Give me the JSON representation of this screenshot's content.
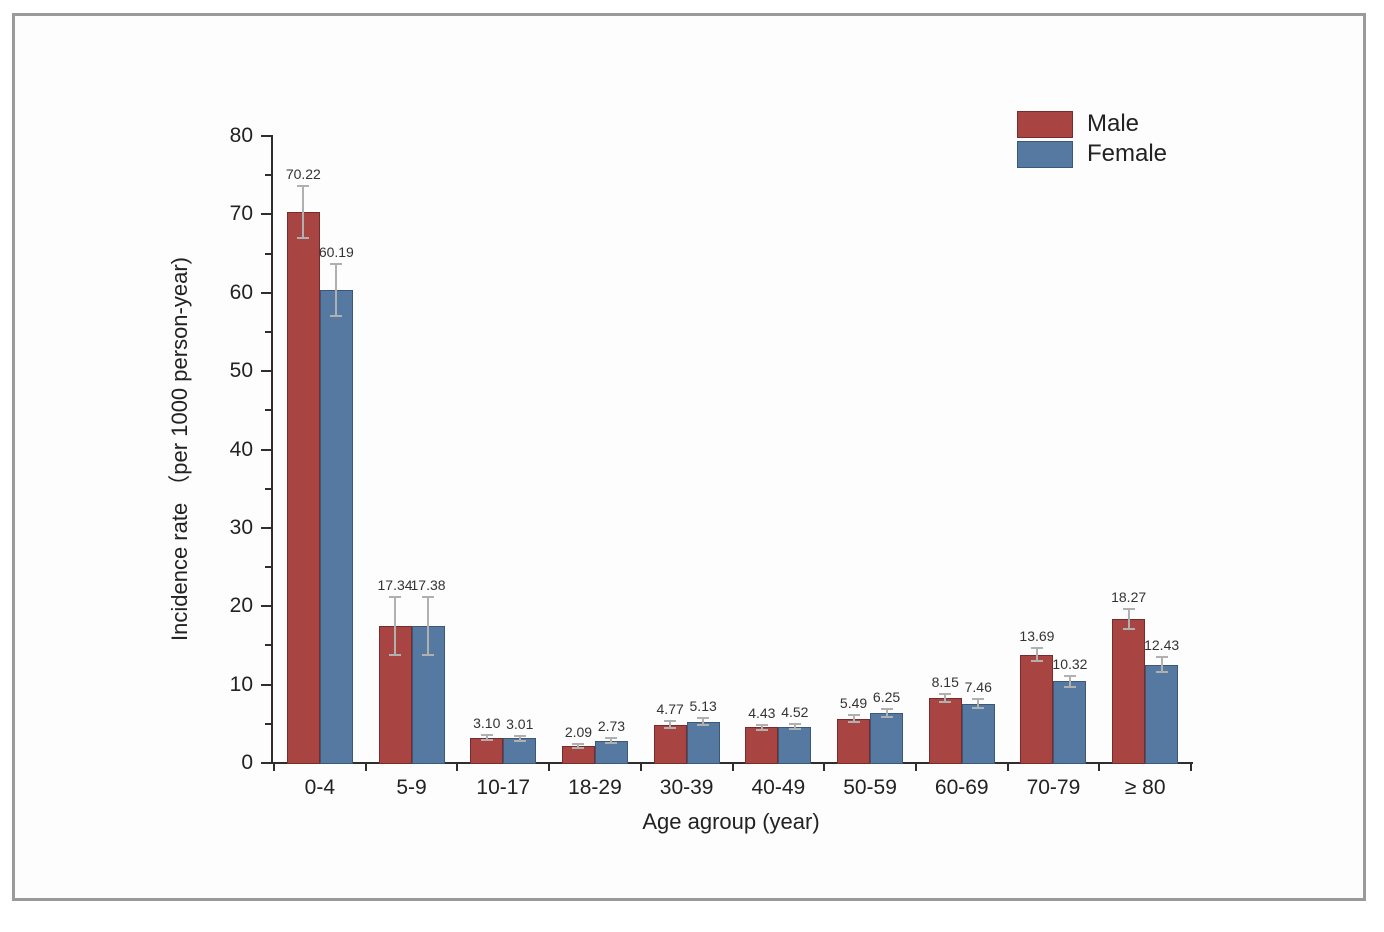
{
  "frame": {
    "border_color": "#9a9a9a",
    "background": "#fdfdfd"
  },
  "chart_data": {
    "type": "bar",
    "title": "",
    "xlabel": "Age agroup (year)",
    "ylabel": "Incidence rate （per 1000 person-year)",
    "categories": [
      "0-4",
      "5-9",
      "10-17",
      "18-29",
      "30-39",
      "40-49",
      "50-59",
      "60-69",
      "70-79",
      "≥ 80"
    ],
    "series": [
      {
        "name": "Male",
        "color": "#a84543",
        "edge_color": "#772c2b",
        "values": [
          70.22,
          17.34,
          3.1,
          2.09,
          4.77,
          4.43,
          5.49,
          8.15,
          13.69,
          18.27
        ],
        "labels": [
          "70.22",
          "17.34",
          "3.10",
          "2.09",
          "4.77",
          "4.43",
          "5.49",
          "8.15",
          "13.69",
          "18.27"
        ],
        "errors": [
          3.3,
          3.7,
          0.3,
          0.25,
          0.4,
          0.3,
          0.45,
          0.55,
          0.85,
          1.3
        ]
      },
      {
        "name": "Female",
        "color": "#5579a1",
        "edge_color": "#3b5877",
        "values": [
          60.19,
          17.38,
          3.01,
          2.73,
          5.13,
          4.52,
          6.25,
          7.46,
          10.32,
          12.43
        ],
        "labels": [
          "60.19",
          "17.38",
          "3.01",
          "2.73",
          "5.13",
          "4.52",
          "6.25",
          "7.46",
          "10.32",
          "12.43"
        ],
        "errors": [
          3.3,
          3.7,
          0.3,
          0.3,
          0.45,
          0.35,
          0.5,
          0.6,
          0.7,
          0.95
        ]
      }
    ],
    "ylim": [
      0,
      80
    ],
    "y_major_ticks": [
      "0",
      "10",
      "20",
      "30",
      "40",
      "50",
      "60",
      "70",
      "80"
    ],
    "y_minor_step": 5,
    "grid": false,
    "legend_position": "top-right",
    "error_bar_color": "#b0b0b0",
    "axis_color": "#2e2e2e"
  }
}
